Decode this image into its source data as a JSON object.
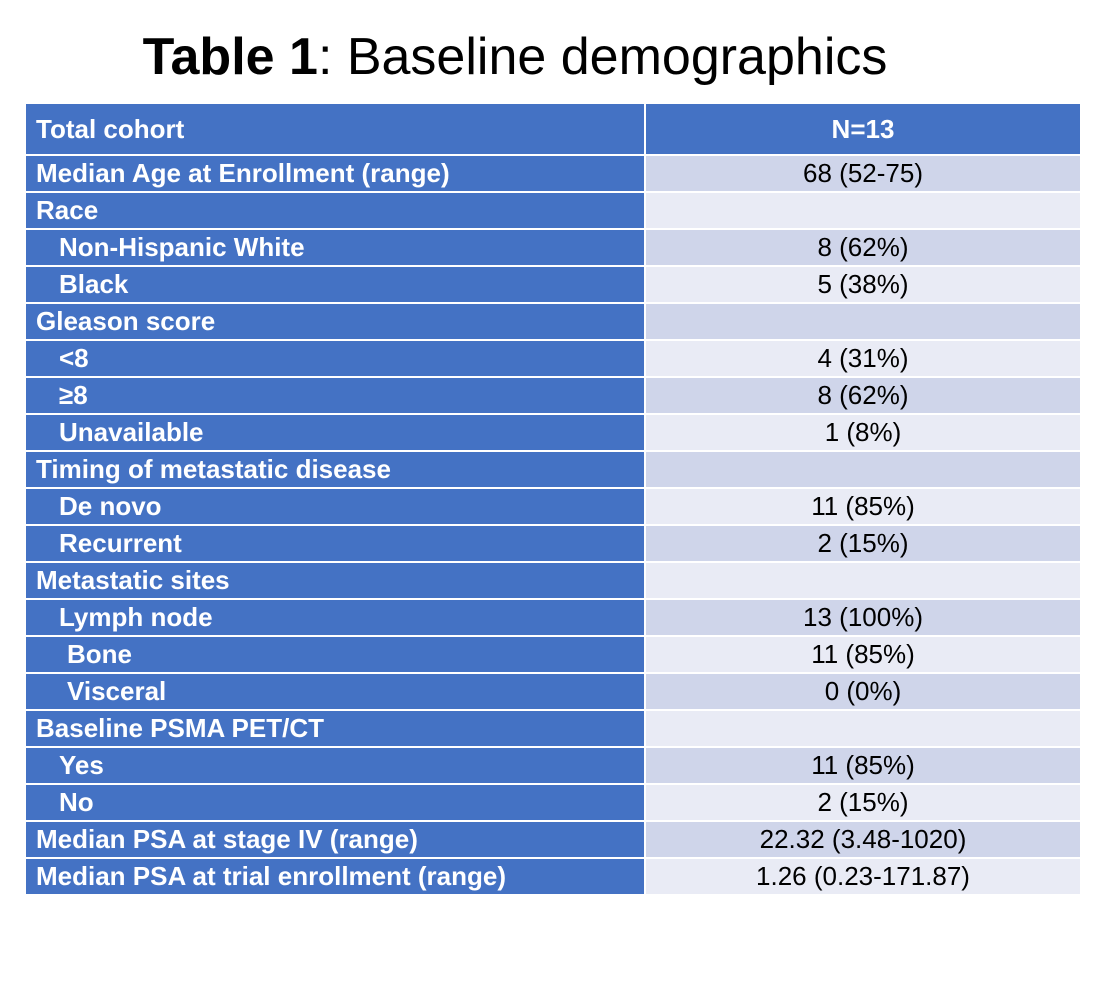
{
  "title": {
    "bold": "Table 1",
    "rest": ": Baseline demographics"
  },
  "table": {
    "header": {
      "label": "Total cohort",
      "value": "N=13"
    },
    "rows": [
      {
        "label": "Median Age at Enrollment (range)",
        "value": "68 (52-75)",
        "indent": 0
      },
      {
        "label": "Race",
        "value": "",
        "indent": 0
      },
      {
        "label": "Non-Hispanic White",
        "value": "8 (62%)",
        "indent": 1
      },
      {
        "label": "Black",
        "value": "5 (38%)",
        "indent": 1
      },
      {
        "label": "Gleason score",
        "value": "",
        "indent": 0
      },
      {
        "label": "<8",
        "value": "4 (31%)",
        "indent": 1
      },
      {
        "label": "≥8",
        "value": "8 (62%)",
        "indent": 1
      },
      {
        "label": "Unavailable",
        "value": "1 (8%)",
        "indent": 1
      },
      {
        "label": "Timing of metastatic disease",
        "value": "",
        "indent": 0
      },
      {
        "label": "De novo",
        "value": "11 (85%)",
        "indent": 1
      },
      {
        "label": "Recurrent",
        "value": "2 (15%)",
        "indent": 1
      },
      {
        "label": "Metastatic sites",
        "value": "",
        "indent": 0
      },
      {
        "label": "Lymph node",
        "value": "13 (100%)",
        "indent": 1
      },
      {
        "label": "Bone",
        "value": "11 (85%)",
        "indent": 2
      },
      {
        "label": "Visceral",
        "value": "0 (0%)",
        "indent": 2
      },
      {
        "label": "Baseline PSMA PET/CT",
        "value": "",
        "indent": 0
      },
      {
        "label": "Yes",
        "value": "11 (85%)",
        "indent": 1
      },
      {
        "label": "No",
        "value": "2 (15%)",
        "indent": 1
      },
      {
        "label": "Median PSA at stage IV (range)",
        "value": "22.32 (3.48-1020)",
        "indent": 0
      },
      {
        "label": "Median PSA at trial enrollment (range)",
        "value": "1.26 (0.23-171.87)",
        "indent": 0
      }
    ]
  }
}
